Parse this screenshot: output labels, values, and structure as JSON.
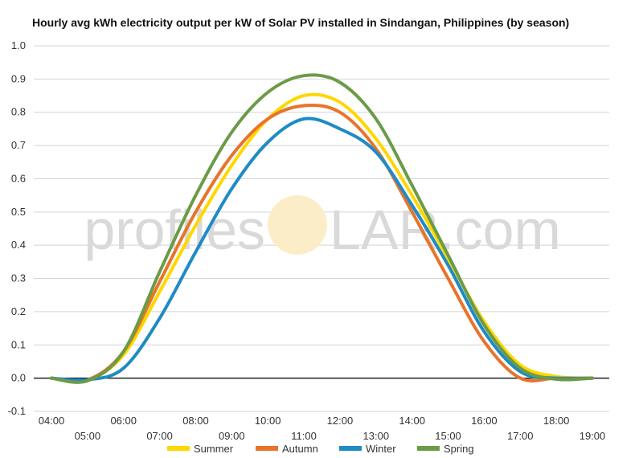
{
  "watermark": {
    "left": "profiles",
    "right": "LAR.com"
  },
  "chart_data": {
    "type": "line",
    "title": "Hourly avg kWh electricity output per kW of Solar PV installed in Sindangan, Philippines (by season)",
    "xlabel": "",
    "ylabel": "",
    "ylim": [
      -0.1,
      1.0
    ],
    "yticks": [
      "1.0",
      "0.9",
      "0.8",
      "0.7",
      "0.6",
      "0.5",
      "0.4",
      "0.3",
      "0.2",
      "0.1",
      "0.0",
      "-0.1"
    ],
    "categories": [
      "04:00",
      "05:00",
      "06:00",
      "07:00",
      "08:00",
      "09:00",
      "10:00",
      "11:00",
      "12:00",
      "13:00",
      "14:00",
      "15:00",
      "16:00",
      "17:00",
      "18:00",
      "19:00"
    ],
    "grid": true,
    "legend_position": "bottom",
    "series": [
      {
        "name": "Summer",
        "color": "#FFD700",
        "values": [
          0.0,
          -0.005,
          0.07,
          0.26,
          0.46,
          0.64,
          0.78,
          0.85,
          0.83,
          0.72,
          0.55,
          0.36,
          0.17,
          0.04,
          0.005,
          0.0
        ]
      },
      {
        "name": "Autumn",
        "color": "#E8742A",
        "values": [
          0.0,
          -0.005,
          0.08,
          0.29,
          0.5,
          0.67,
          0.78,
          0.82,
          0.8,
          0.69,
          0.5,
          0.3,
          0.11,
          0.0,
          0.0,
          0.0
        ]
      },
      {
        "name": "Winter",
        "color": "#1F8BC4",
        "values": [
          0.0,
          -0.005,
          0.03,
          0.18,
          0.38,
          0.57,
          0.71,
          0.78,
          0.75,
          0.68,
          0.52,
          0.34,
          0.14,
          0.02,
          0.0,
          0.0
        ]
      },
      {
        "name": "Spring",
        "color": "#6B9B47",
        "values": [
          0.0,
          -0.008,
          0.08,
          0.32,
          0.55,
          0.74,
          0.86,
          0.91,
          0.89,
          0.78,
          0.58,
          0.37,
          0.16,
          0.03,
          -0.003,
          0.0
        ]
      }
    ]
  }
}
